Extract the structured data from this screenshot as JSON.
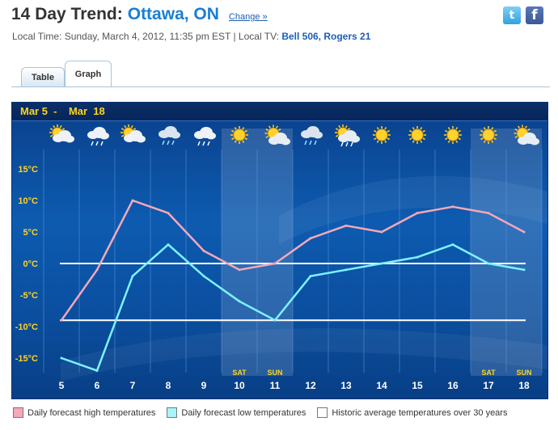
{
  "header": {
    "title_prefix": "14 Day Trend:",
    "city": "Ottawa, ON",
    "change_label": "Change »",
    "local_time": "Local Time: Sunday, March 4, 2012, 11:35 pm EST  |  Local TV:",
    "local_tv": "Bell 506, Rogers 21"
  },
  "social": {
    "twitter": "t",
    "facebook": "f"
  },
  "tabs": [
    {
      "label": "Table"
    },
    {
      "label": "Graph"
    }
  ],
  "chart": {
    "range_label": "Mar 5  -    Mar  18",
    "weekend_labels": {
      "10": "SAT",
      "11": "SUN",
      "17": "SAT",
      "18": "SUN"
    }
  },
  "chart_data": {
    "type": "line",
    "x": [
      "5",
      "6",
      "7",
      "8",
      "9",
      "10",
      "11",
      "12",
      "13",
      "14",
      "15",
      "16",
      "17",
      "18"
    ],
    "y_ticks": [
      "15°C",
      "10°C",
      "5°C",
      "0°C",
      "-5°C",
      "-10°C",
      "-15°C"
    ],
    "ylim": [
      -18,
      18
    ],
    "series": [
      {
        "name": "Daily forecast high temperatures",
        "color": "#f4a8b8",
        "values": [
          -9,
          -1,
          10,
          8,
          2,
          -1,
          0,
          4,
          6,
          5,
          8,
          9,
          8,
          5
        ]
      },
      {
        "name": "Daily forecast low temperatures",
        "color": "#7df2ff",
        "values": [
          -15,
          -17,
          -2,
          3,
          -2,
          -6,
          -9,
          -2,
          -1,
          0,
          1,
          3,
          0,
          -1
        ]
      }
    ],
    "reference_lines": [
      {
        "name": "Historic average temperatures over 30 years",
        "color": "#ffffff",
        "values": [
          0,
          -9
        ]
      }
    ],
    "weather_icons": [
      "partly-cloudy",
      "snow-cloud",
      "partly-cloudy",
      "rain-cloud",
      "snow-cloud",
      "sun",
      "partly-sunny",
      "rain-cloud",
      "sun-snow",
      "sun",
      "sun",
      "sun",
      "sun",
      "partly-sunny"
    ],
    "weekend_days": [
      "10",
      "11",
      "17",
      "18"
    ],
    "grid": true
  },
  "legend": [
    {
      "label": "Daily forecast high temperatures",
      "color": "#f4a8b8"
    },
    {
      "label": "Daily forecast low temperatures",
      "color": "#a8f4ff"
    },
    {
      "label": "Historic average temperatures over 30 years",
      "color": "#ffffff"
    }
  ]
}
